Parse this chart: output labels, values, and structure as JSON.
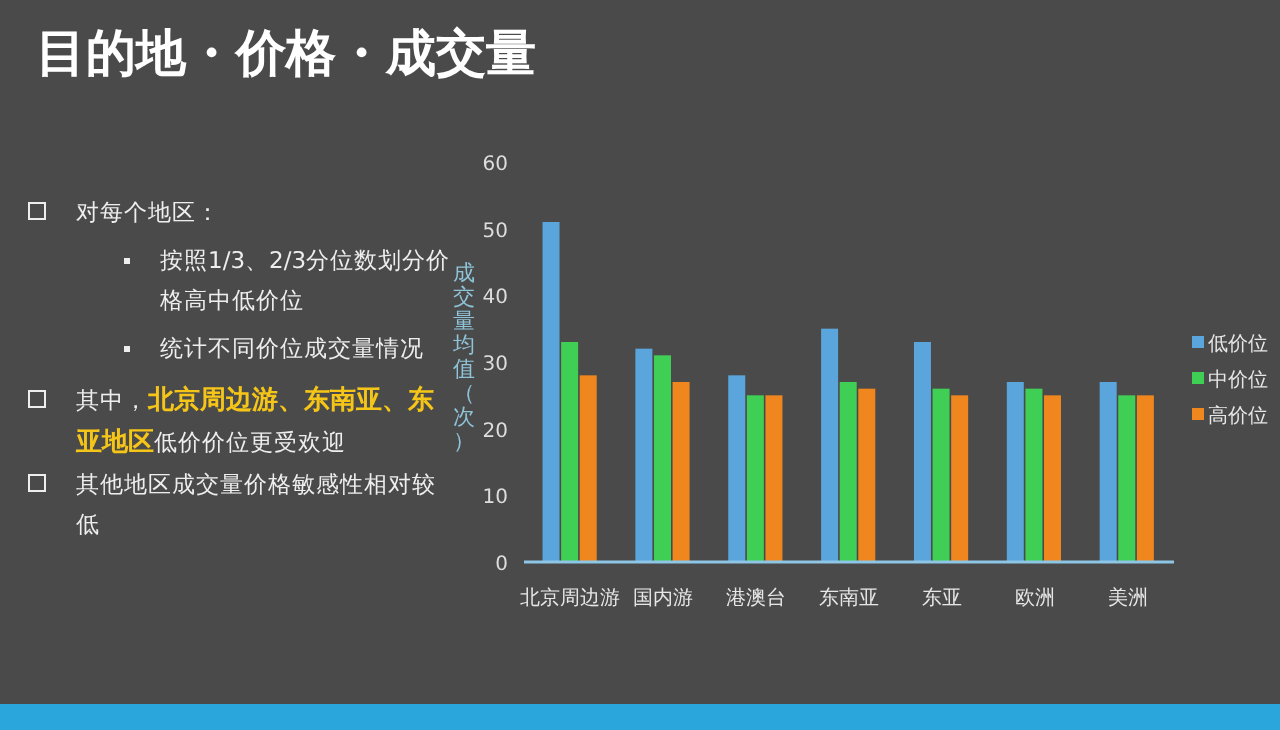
{
  "chart_data": {
    "type": "bar",
    "title": "目的地・价格・成交量",
    "ylabel": "成交量均值（次）",
    "categories": [
      "北京周边游",
      "国内游",
      "港澳台",
      "东南亚",
      "东亚",
      "欧洲",
      "美洲"
    ],
    "series": [
      {
        "name": "低价位",
        "color": "#5aa6dc",
        "values": [
          51,
          32,
          28,
          35,
          33,
          27,
          27
        ]
      },
      {
        "name": "中价位",
        "color": "#3fcf55",
        "values": [
          33,
          31,
          25,
          27,
          26,
          26,
          25
        ]
      },
      {
        "name": "高价位",
        "color": "#f0861e",
        "values": [
          28,
          27,
          25,
          26,
          25,
          25,
          25
        ]
      }
    ],
    "ylim": [
      0,
      60
    ],
    "yticks": [
      0,
      10,
      20,
      30,
      40,
      50,
      60
    ],
    "legend": "right",
    "annotations": [
      "对每个地区：",
      "按照1/3、2/3分位数划分价格高中低价位",
      "统计不同价位成交量情况",
      "其中，**北京周边游、东南亚、东亚地区**低价价位更受欢迎",
      "其他地区成交量价格敏感性相对较低"
    ]
  }
}
